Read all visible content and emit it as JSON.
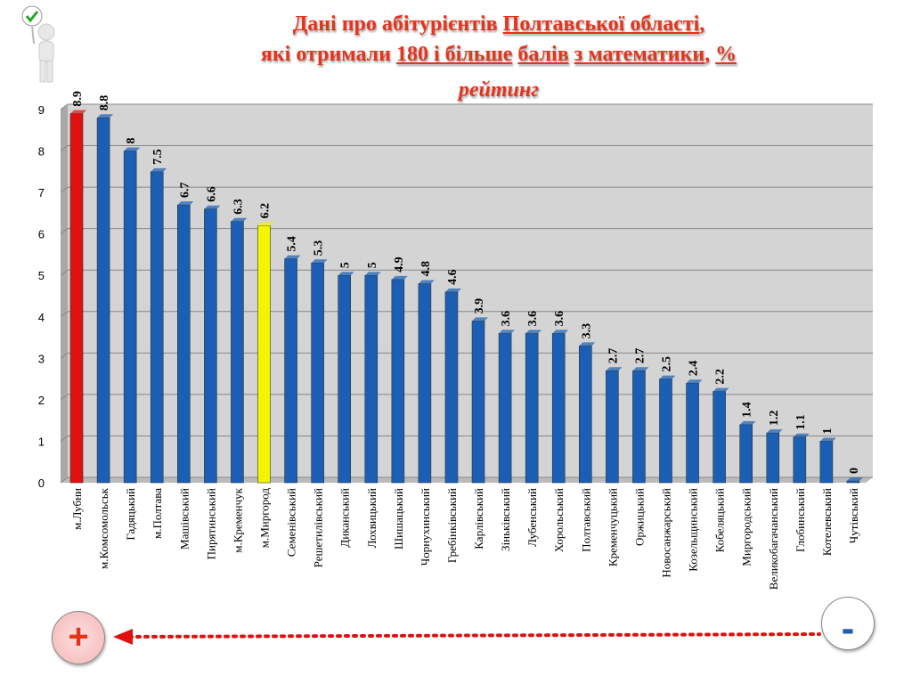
{
  "title": {
    "line1a": "Дані про абітурієнтів ",
    "line1b": "Полтавської області",
    "line1c": ",",
    "line2a": "які отримали ",
    "line2b": "180 і більше",
    "line2c": " ",
    "line2d": "балів",
    "line2e": " ",
    "line2f": "з математики",
    "line2g": ", ",
    "line2h": "%",
    "subtitle": "рейтинг"
  },
  "legend": {
    "plus": "+",
    "minus": "-"
  },
  "chart_data": {
    "type": "bar",
    "title": "Дані про абітурієнтів Полтавської області, які отримали 180 і більше балів з математики, % рейтинг",
    "ylim": [
      0,
      9
    ],
    "yticks": [
      0,
      1,
      2,
      3,
      4,
      5,
      6,
      7,
      8,
      9
    ],
    "grid": true,
    "categories": [
      "м.Лубни",
      "м.Комсомольськ",
      "Гадяцький",
      "м.Полтава",
      "Машівський",
      "Пирятинський",
      "м.Кременчук",
      "м.Миргород",
      "Семенівський",
      "Решетилівський",
      "Диканський",
      "Лохвицький",
      "Шишацький",
      "Чорнухинський",
      "Гребінківський",
      "Карлівський",
      "Зіньківський",
      "Лубенський",
      "Хорольський",
      "Полтавський",
      "Кременчуцький",
      "Оржицький",
      "Новосанжарський",
      "Козельщинський",
      "Кобеляцький",
      "Миргородський",
      "Великобагачанський",
      "Глобинський",
      "Котелевський",
      "Чутівський"
    ],
    "values": [
      8.9,
      8.8,
      8,
      7.5,
      6.7,
      6.6,
      6.3,
      6.2,
      5.4,
      5.3,
      5,
      5,
      4.9,
      4.8,
      4.6,
      3.9,
      3.6,
      3.6,
      3.6,
      3.3,
      2.7,
      2.7,
      2.5,
      2.4,
      2.2,
      1.4,
      1.2,
      1.1,
      1,
      0
    ],
    "colors": {
      "default": "#1a5fb4",
      "highlight_first": "#e01010",
      "highlight_mirhorod": "#f4f400"
    }
  }
}
